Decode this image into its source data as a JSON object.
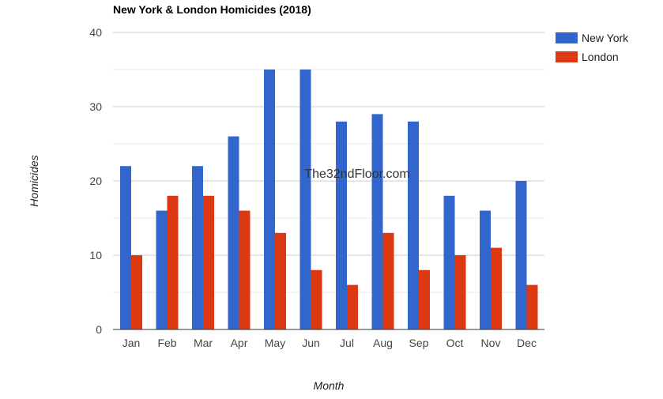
{
  "chart_data": {
    "type": "bar",
    "title": "New York & London Homicides (2018)",
    "xlabel": "Month",
    "ylabel": "Homicides",
    "categories": [
      "Jan",
      "Feb",
      "Mar",
      "Apr",
      "May",
      "Jun",
      "Jul",
      "Aug",
      "Sep",
      "Oct",
      "Nov",
      "Dec"
    ],
    "series": [
      {
        "name": "New York",
        "color": "#3366cc",
        "values": [
          22,
          16,
          22,
          26,
          35,
          35,
          28,
          29,
          28,
          18,
          16,
          20
        ]
      },
      {
        "name": "London",
        "color": "#dc3912",
        "values": [
          10,
          18,
          18,
          16,
          13,
          8,
          6,
          13,
          8,
          10,
          11,
          6
        ]
      }
    ],
    "ylim": [
      0,
      40
    ],
    "yticks": [
      0,
      10,
      20,
      30,
      40
    ],
    "grid": true,
    "legend_position": "right",
    "watermark": "The32ndFloor.com"
  }
}
